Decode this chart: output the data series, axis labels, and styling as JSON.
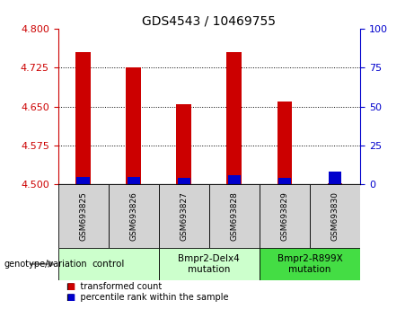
{
  "title": "GDS4543 / 10469755",
  "samples": [
    "GSM693825",
    "GSM693826",
    "GSM693827",
    "GSM693828",
    "GSM693829",
    "GSM693830"
  ],
  "red_values": [
    4.755,
    4.725,
    4.655,
    4.755,
    4.66,
    4.503
  ],
  "blue_values": [
    4.515,
    4.515,
    4.513,
    4.517,
    4.513,
    4.525
  ],
  "ylim_left": [
    4.5,
    4.8
  ],
  "ylim_right": [
    0,
    100
  ],
  "yticks_left": [
    4.5,
    4.575,
    4.65,
    4.725,
    4.8
  ],
  "yticks_right": [
    0,
    25,
    50,
    75,
    100
  ],
  "bar_bottom": 4.5,
  "groups": [
    {
      "label": "control",
      "span": [
        0,
        2
      ],
      "color": "#ccffcc"
    },
    {
      "label": "Bmpr2-Delx4\nmutation",
      "span": [
        2,
        4
      ],
      "color": "#ccffcc"
    },
    {
      "label": "Bmpr2-R899X\nmutation",
      "span": [
        4,
        6
      ],
      "color": "#44dd44"
    }
  ],
  "genotype_label": "genotype/variation",
  "legend_red": "transformed count",
  "legend_blue": "percentile rank within the sample",
  "red_color": "#cc0000",
  "blue_color": "#0000cc",
  "bar_width": 0.3,
  "grid_color": "black",
  "left_tick_color": "#cc0000",
  "right_tick_color": "#0000cc",
  "bg_color": "#ffffff",
  "plot_bg": "#ffffff",
  "sample_bg": "#d3d3d3",
  "title_fontsize": 10,
  "tick_fontsize": 8,
  "sample_fontsize": 6.5,
  "group_fontsize": 7.5,
  "legend_fontsize": 7,
  "genotype_fontsize": 7
}
